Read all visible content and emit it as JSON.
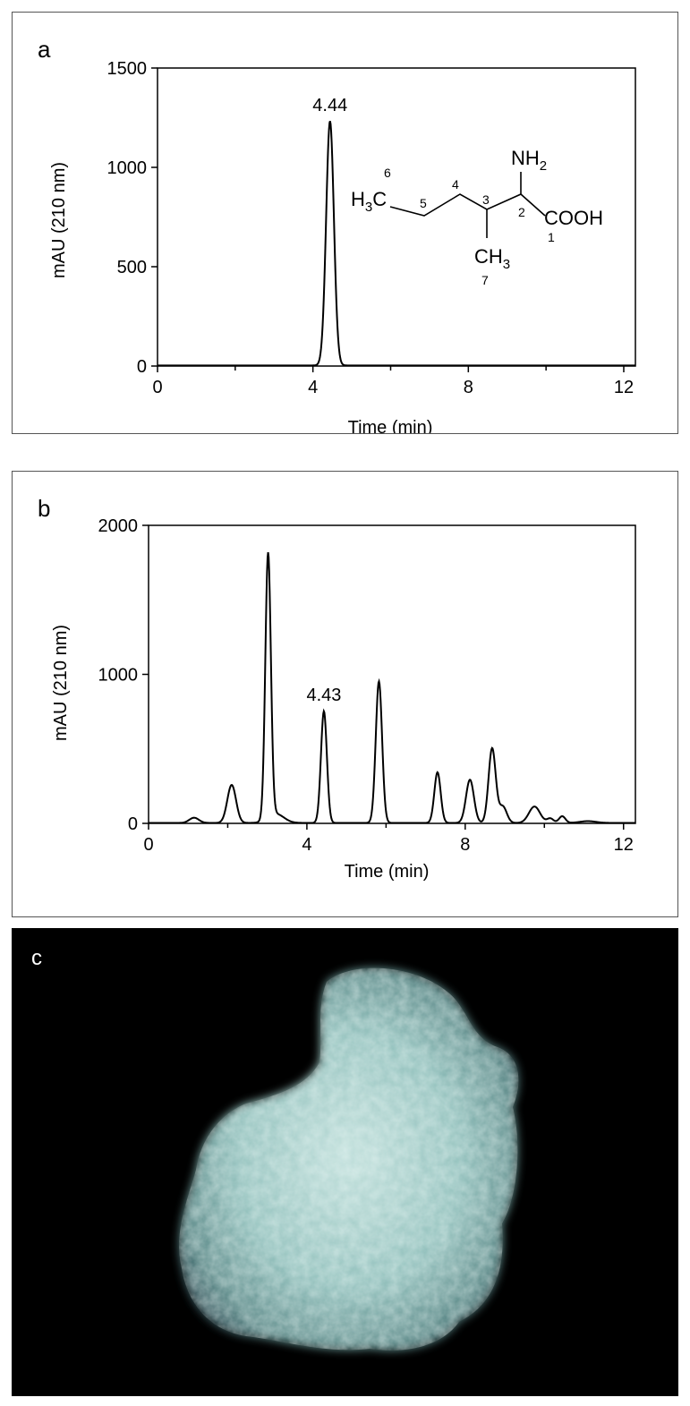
{
  "panels": {
    "a": {
      "letter": "a"
    },
    "b": {
      "letter": "b"
    },
    "c": {
      "letter": "c"
    }
  },
  "chart_data": [
    {
      "type": "line",
      "panel": "a",
      "xlabel": "Time (min)",
      "ylabel": "mAU (210 nm)",
      "xlim": [
        0,
        12.3
      ],
      "ylim": [
        0,
        1500
      ],
      "xticks": [
        0,
        4,
        8,
        12
      ],
      "yticks": [
        0,
        500,
        1000,
        1500
      ],
      "peaks": [
        {
          "rt": 4.44,
          "height": 1230,
          "width": 0.1
        }
      ],
      "annotations": [
        {
          "text": "4.44",
          "x": 4.44,
          "y": 1230
        }
      ],
      "structure": {
        "nh2": "NH",
        "nh2_sub": "2",
        "h3c": "H",
        "h3c_sub": "3",
        "h3c_tail": "C",
        "cooh": "COOH",
        "ch3": "CH",
        "ch3_sub": "3",
        "numbers": [
          "1",
          "2",
          "3",
          "4",
          "5",
          "6",
          "7"
        ]
      }
    },
    {
      "type": "line",
      "panel": "b",
      "xlabel": "Time (min)",
      "ylabel": "mAU (210 nm)",
      "xlim": [
        0,
        12.3
      ],
      "ylim": [
        0,
        2000
      ],
      "xticks": [
        0,
        4,
        8,
        12
      ],
      "yticks": [
        0,
        1000,
        2000
      ],
      "peaks": [
        {
          "rt": 1.15,
          "height": 35,
          "width": 0.12
        },
        {
          "rt": 2.1,
          "height": 255,
          "width": 0.11
        },
        {
          "rt": 3.02,
          "height": 1780,
          "width": 0.07
        },
        {
          "rt": 3.22,
          "height": 60,
          "width": 0.2
        },
        {
          "rt": 4.43,
          "height": 750,
          "width": 0.075
        },
        {
          "rt": 5.82,
          "height": 950,
          "width": 0.08
        },
        {
          "rt": 7.3,
          "height": 340,
          "width": 0.08
        },
        {
          "rt": 8.12,
          "height": 290,
          "width": 0.1
        },
        {
          "rt": 8.68,
          "height": 500,
          "width": 0.09
        },
        {
          "rt": 8.95,
          "height": 110,
          "width": 0.1
        },
        {
          "rt": 9.75,
          "height": 110,
          "width": 0.14
        },
        {
          "rt": 10.15,
          "height": 30,
          "width": 0.08
        },
        {
          "rt": 10.45,
          "height": 45,
          "width": 0.08
        },
        {
          "rt": 11.1,
          "height": 12,
          "width": 0.2
        }
      ],
      "annotations": [
        {
          "text": "4.43",
          "x": 4.43,
          "y": 750
        }
      ]
    }
  ]
}
